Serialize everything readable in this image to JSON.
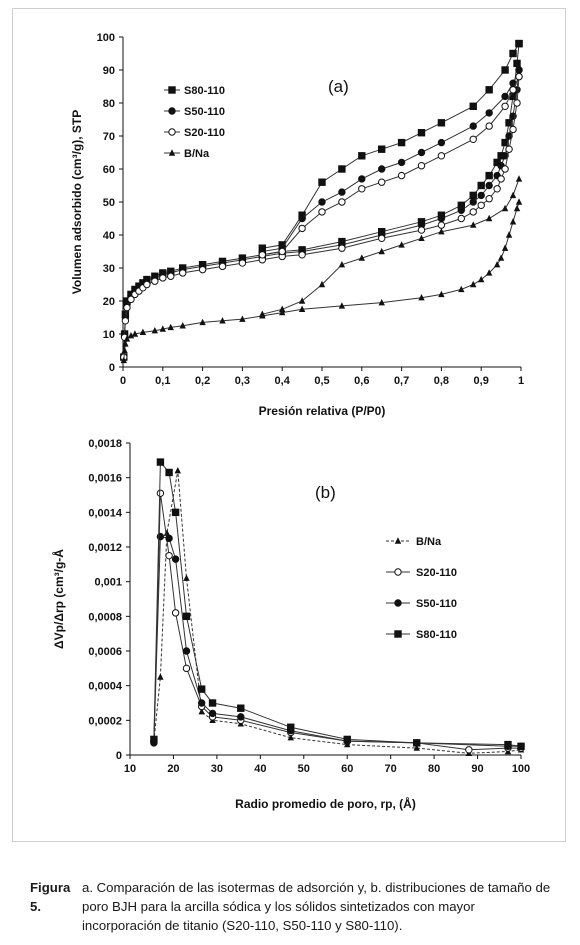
{
  "caption": {
    "label": "Figura 5.",
    "text": "a. Comparación de las isotermas de adsorción y, b. distribuciones de tamaño de poro BJH para la arcilla sódica y los sólidos sintetizados con mayor incorporación de titanio (S20-110, S50-110 y S80-110)."
  },
  "chart_data": [
    {
      "type": "line",
      "panel_label": "(a)",
      "xlabel": "Presión relativa (P/P0)",
      "ylabel": "Volumen adsorbido (cm³/g), STP",
      "xlim": [
        0,
        1
      ],
      "ylim": [
        0,
        100
      ],
      "xticks": [
        "0",
        "0,1",
        "0,2",
        "0,3",
        "0,4",
        "0,5",
        "0,6",
        "0,7",
        "0,8",
        "0,9",
        "1"
      ],
      "yticks": [
        "0",
        "10",
        "20",
        "30",
        "40",
        "50",
        "60",
        "70",
        "80",
        "90",
        "100"
      ],
      "legend_position": "top-left",
      "grid": false,
      "series": [
        {
          "name": "S80-110",
          "marker": "square-filled",
          "adsorption": [
            [
              0.002,
              3
            ],
            [
              0.004,
              10
            ],
            [
              0.006,
              16
            ],
            [
              0.01,
              20
            ],
            [
              0.02,
              22
            ],
            [
              0.03,
              23.5
            ],
            [
              0.04,
              24.5
            ],
            [
              0.05,
              25.5
            ],
            [
              0.06,
              26.5
            ],
            [
              0.08,
              27.5
            ],
            [
              0.1,
              28.5
            ],
            [
              0.12,
              29
            ],
            [
              0.15,
              30
            ],
            [
              0.2,
              31
            ],
            [
              0.25,
              32
            ],
            [
              0.3,
              33
            ],
            [
              0.35,
              34
            ],
            [
              0.4,
              35
            ],
            [
              0.45,
              35.5
            ],
            [
              0.55,
              38
            ],
            [
              0.65,
              41
            ],
            [
              0.75,
              44
            ],
            [
              0.8,
              46
            ],
            [
              0.85,
              49
            ],
            [
              0.88,
              52
            ],
            [
              0.9,
              55
            ],
            [
              0.92,
              58
            ],
            [
              0.94,
              62
            ],
            [
              0.95,
              64
            ],
            [
              0.96,
              68
            ],
            [
              0.97,
              74
            ],
            [
              0.98,
              82
            ],
            [
              0.99,
              92
            ],
            [
              0.995,
              98
            ]
          ],
          "desorption": [
            [
              0.995,
              98
            ],
            [
              0.98,
              95
            ],
            [
              0.96,
              90
            ],
            [
              0.92,
              84
            ],
            [
              0.88,
              79
            ],
            [
              0.8,
              74
            ],
            [
              0.75,
              71
            ],
            [
              0.7,
              68
            ],
            [
              0.65,
              66
            ],
            [
              0.6,
              64
            ],
            [
              0.55,
              60
            ],
            [
              0.5,
              56
            ],
            [
              0.45,
              46
            ],
            [
              0.4,
              37
            ],
            [
              0.35,
              36
            ]
          ]
        },
        {
          "name": "S50-110",
          "marker": "circle-filled",
          "adsorption": [
            [
              0.002,
              3
            ],
            [
              0.004,
              10
            ],
            [
              0.006,
              15
            ],
            [
              0.01,
              19
            ],
            [
              0.02,
              21.5
            ],
            [
              0.03,
              23
            ],
            [
              0.04,
              24
            ],
            [
              0.05,
              25
            ],
            [
              0.06,
              26
            ],
            [
              0.08,
              27
            ],
            [
              0.1,
              28
            ],
            [
              0.12,
              28.5
            ],
            [
              0.15,
              29.5
            ],
            [
              0.2,
              30.5
            ],
            [
              0.25,
              31.5
            ],
            [
              0.3,
              32.5
            ],
            [
              0.35,
              33.5
            ],
            [
              0.4,
              34.5
            ],
            [
              0.45,
              35
            ],
            [
              0.55,
              37
            ],
            [
              0.65,
              40
            ],
            [
              0.75,
              43
            ],
            [
              0.8,
              45
            ],
            [
              0.85,
              47.5
            ],
            [
              0.88,
              50
            ],
            [
              0.9,
              52
            ],
            [
              0.92,
              55
            ],
            [
              0.94,
              58
            ],
            [
              0.95,
              61
            ],
            [
              0.96,
              64
            ],
            [
              0.97,
              70
            ],
            [
              0.98,
              76
            ],
            [
              0.99,
              84
            ],
            [
              0.995,
              90
            ]
          ],
          "desorption": [
            [
              0.995,
              90
            ],
            [
              0.98,
              86
            ],
            [
              0.96,
              82
            ],
            [
              0.92,
              77
            ],
            [
              0.88,
              73
            ],
            [
              0.8,
              68
            ],
            [
              0.75,
              65
            ],
            [
              0.7,
              62
            ],
            [
              0.65,
              60
            ],
            [
              0.6,
              57
            ],
            [
              0.55,
              53
            ],
            [
              0.5,
              50
            ],
            [
              0.45,
              45
            ],
            [
              0.4,
              36
            ],
            [
              0.35,
              35
            ]
          ]
        },
        {
          "name": "S20-110",
          "marker": "circle-open",
          "adsorption": [
            [
              0.002,
              3
            ],
            [
              0.004,
              9
            ],
            [
              0.006,
              14
            ],
            [
              0.01,
              18
            ],
            [
              0.02,
              20.5
            ],
            [
              0.03,
              22
            ],
            [
              0.04,
              23
            ],
            [
              0.05,
              24
            ],
            [
              0.06,
              25
            ],
            [
              0.08,
              26
            ],
            [
              0.1,
              27
            ],
            [
              0.12,
              27.5
            ],
            [
              0.15,
              28.5
            ],
            [
              0.2,
              29.5
            ],
            [
              0.25,
              30.5
            ],
            [
              0.3,
              31.5
            ],
            [
              0.35,
              32.5
            ],
            [
              0.4,
              33.5
            ],
            [
              0.45,
              34
            ],
            [
              0.55,
              36
            ],
            [
              0.65,
              39
            ],
            [
              0.75,
              41.5
            ],
            [
              0.8,
              43
            ],
            [
              0.85,
              45
            ],
            [
              0.88,
              47
            ],
            [
              0.9,
              49
            ],
            [
              0.92,
              51
            ],
            [
              0.94,
              54
            ],
            [
              0.95,
              57
            ],
            [
              0.96,
              60
            ],
            [
              0.97,
              66
            ],
            [
              0.98,
              72
            ],
            [
              0.99,
              80
            ],
            [
              0.995,
              88
            ]
          ],
          "desorption": [
            [
              0.995,
              88
            ],
            [
              0.98,
              84
            ],
            [
              0.96,
              79
            ],
            [
              0.92,
              73
            ],
            [
              0.88,
              69
            ],
            [
              0.8,
              64
            ],
            [
              0.75,
              61
            ],
            [
              0.7,
              58
            ],
            [
              0.65,
              56
            ],
            [
              0.6,
              54
            ],
            [
              0.55,
              50
            ],
            [
              0.5,
              47
            ],
            [
              0.45,
              42
            ],
            [
              0.4,
              35
            ],
            [
              0.35,
              34
            ]
          ]
        },
        {
          "name": "B/Na",
          "marker": "triangle-filled",
          "adsorption": [
            [
              0.002,
              2
            ],
            [
              0.004,
              5
            ],
            [
              0.006,
              7
            ],
            [
              0.01,
              8.5
            ],
            [
              0.02,
              9.5
            ],
            [
              0.03,
              10
            ],
            [
              0.05,
              10.5
            ],
            [
              0.08,
              11
            ],
            [
              0.1,
              11.5
            ],
            [
              0.12,
              12
            ],
            [
              0.15,
              12.5
            ],
            [
              0.2,
              13.5
            ],
            [
              0.25,
              14
            ],
            [
              0.3,
              14.5
            ],
            [
              0.35,
              15.5
            ],
            [
              0.4,
              16.5
            ],
            [
              0.45,
              17.5
            ],
            [
              0.55,
              18.5
            ],
            [
              0.65,
              19.5
            ],
            [
              0.75,
              21
            ],
            [
              0.8,
              22
            ],
            [
              0.85,
              23.5
            ],
            [
              0.88,
              25
            ],
            [
              0.9,
              26.5
            ],
            [
              0.92,
              28.5
            ],
            [
              0.94,
              31
            ],
            [
              0.95,
              33
            ],
            [
              0.96,
              36
            ],
            [
              0.97,
              40
            ],
            [
              0.98,
              44
            ],
            [
              0.99,
              48
            ],
            [
              0.995,
              50
            ]
          ],
          "desorption": [
            [
              0.995,
              57
            ],
            [
              0.98,
              52
            ],
            [
              0.96,
              48
            ],
            [
              0.92,
              45
            ],
            [
              0.88,
              43
            ],
            [
              0.8,
              41
            ],
            [
              0.75,
              39
            ],
            [
              0.7,
              37
            ],
            [
              0.65,
              35
            ],
            [
              0.6,
              33
            ],
            [
              0.55,
              31
            ],
            [
              0.5,
              25
            ],
            [
              0.45,
              20
            ],
            [
              0.4,
              17.5
            ],
            [
              0.35,
              16
            ]
          ]
        }
      ]
    },
    {
      "type": "line",
      "panel_label": "(b)",
      "xlabel": "Radio promedio de poro, rp, (Å)",
      "ylabel": "ΔVp/Δrp (cm³/g-Å",
      "xlim": [
        10,
        100
      ],
      "ylim": [
        0,
        0.0018
      ],
      "xticks": [
        "10",
        "20",
        "30",
        "40",
        "50",
        "60",
        "70",
        "80",
        "90",
        "100"
      ],
      "yticks": [
        "0",
        "0,0002",
        "0,0004",
        "0,0006",
        "0,0008",
        "0,001",
        "0,0012",
        "0,0014",
        "0,0016",
        "0,0018"
      ],
      "legend_position": "right",
      "grid": false,
      "series": [
        {
          "name": "B/Na",
          "marker": "triangle-filled",
          "line": "dashed",
          "x": [
            15.5,
            17,
            18.5,
            21,
            23,
            26.5,
            29,
            35.5,
            47,
            60,
            76,
            88,
            97,
            100
          ],
          "y": [
            8e-05,
            0.00045,
            0.00128,
            0.00164,
            0.00102,
            0.00025,
            0.0002,
            0.00018,
            0.0001,
            6e-05,
            4e-05,
            1e-05,
            2e-05,
            3e-05
          ]
        },
        {
          "name": "S20-110",
          "marker": "circle-open",
          "line": "solid",
          "x": [
            15.5,
            17,
            19,
            20.5,
            23,
            26.5,
            29,
            35.5,
            47,
            60,
            76,
            88,
            97,
            100
          ],
          "y": [
            8e-05,
            0.00151,
            0.00115,
            0.00082,
            0.0005,
            0.00028,
            0.00022,
            0.0002,
            0.00013,
            8e-05,
            7e-05,
            3e-05,
            4e-05,
            4e-05
          ]
        },
        {
          "name": "S50-110",
          "marker": "circle-filled",
          "line": "solid",
          "x": [
            15.5,
            17,
            19,
            20.5,
            23,
            26.5,
            29,
            35.5,
            47,
            60,
            76,
            97,
            100
          ],
          "y": [
            7e-05,
            0.00126,
            0.00125,
            0.00113,
            0.0006,
            0.0003,
            0.00024,
            0.00022,
            0.00014,
            8e-05,
            7e-05,
            5e-05,
            5e-05
          ]
        },
        {
          "name": "S80-110",
          "marker": "square-filled",
          "line": "solid",
          "x": [
            15.5,
            17,
            19,
            20.5,
            23,
            26.5,
            29,
            35.5,
            47,
            60,
            76,
            97,
            100
          ],
          "y": [
            9e-05,
            0.00169,
            0.00163,
            0.0014,
            0.0008,
            0.00038,
            0.0003,
            0.00027,
            0.00016,
            9e-05,
            7e-05,
            6e-05,
            5e-05
          ]
        }
      ]
    }
  ]
}
